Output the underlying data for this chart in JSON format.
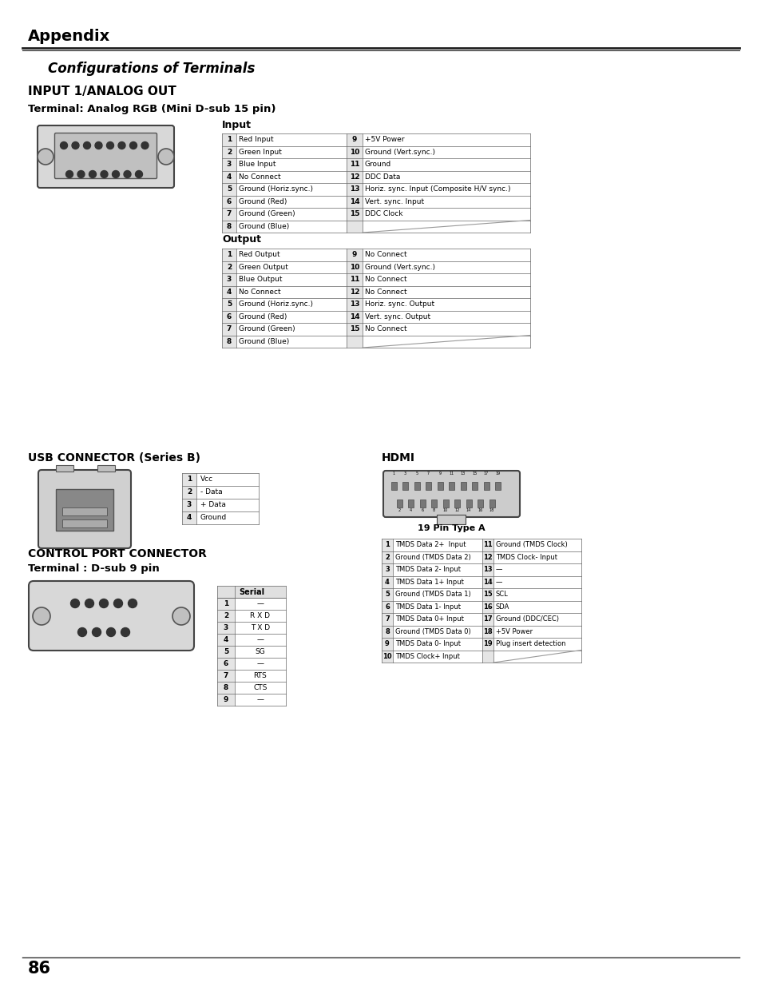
{
  "title_appendix": "Appendix",
  "section_title": "Configurations of Terminals",
  "subsection1": "INPUT 1/ANALOG OUT",
  "subsection1_sub": "Terminal: Analog RGB (Mini D-sub 15 pin)",
  "input_label": "Input",
  "output_label": "Output",
  "input_table_left": [
    [
      "1",
      "Red Input"
    ],
    [
      "2",
      "Green Input"
    ],
    [
      "3",
      "Blue Input"
    ],
    [
      "4",
      "No Connect"
    ],
    [
      "5",
      "Ground (Horiz.sync.)"
    ],
    [
      "6",
      "Ground (Red)"
    ],
    [
      "7",
      "Ground (Green)"
    ],
    [
      "8",
      "Ground (Blue)"
    ]
  ],
  "input_table_right": [
    [
      "9",
      "+5V Power"
    ],
    [
      "10",
      "Ground (Vert.sync.)"
    ],
    [
      "11",
      "Ground"
    ],
    [
      "12",
      "DDC Data"
    ],
    [
      "13",
      "Horiz. sync. Input (Composite H/V sync.)"
    ],
    [
      "14",
      "Vert. sync. Input"
    ],
    [
      "15",
      "DDC Clock"
    ],
    [
      "",
      ""
    ]
  ],
  "output_table_left": [
    [
      "1",
      "Red Output"
    ],
    [
      "2",
      "Green Output"
    ],
    [
      "3",
      "Blue Output"
    ],
    [
      "4",
      "No Connect"
    ],
    [
      "5",
      "Ground (Horiz.sync.)"
    ],
    [
      "6",
      "Ground (Red)"
    ],
    [
      "7",
      "Ground (Green)"
    ],
    [
      "8",
      "Ground (Blue)"
    ]
  ],
  "output_table_right": [
    [
      "9",
      "No Connect"
    ],
    [
      "10",
      "Ground (Vert.sync.)"
    ],
    [
      "11",
      "No Connect"
    ],
    [
      "12",
      "No Connect"
    ],
    [
      "13",
      "Horiz. sync. Output"
    ],
    [
      "14",
      "Vert. sync. Output"
    ],
    [
      "15",
      "No Connect"
    ],
    [
      "",
      ""
    ]
  ],
  "usb_title": "USB CONNECTOR (Series B)",
  "usb_table": [
    [
      "1",
      "Vcc"
    ],
    [
      "2",
      "- Data"
    ],
    [
      "3",
      "+ Data"
    ],
    [
      "4",
      "Ground"
    ]
  ],
  "hdmi_title": "HDMI",
  "hdmi_sub": "19 Pin Type A",
  "hdmi_table": [
    [
      "1",
      "TMDS Data 2+  Input",
      "11",
      "Ground (TMDS Clock)"
    ],
    [
      "2",
      "Ground (TMDS Data 2)",
      "12",
      "TMDS Clock- Input"
    ],
    [
      "3",
      "TMDS Data 2- Input",
      "13",
      "—"
    ],
    [
      "4",
      "TMDS Data 1+ Input",
      "14",
      "—"
    ],
    [
      "5",
      "Ground (TMDS Data 1)",
      "15",
      "SCL"
    ],
    [
      "6",
      "TMDS Data 1- Input",
      "16",
      "SDA"
    ],
    [
      "7",
      "TMDS Data 0+ Input",
      "17",
      "Ground (DDC/CEC)"
    ],
    [
      "8",
      "Ground (TMDS Data 0)",
      "18",
      "+5V Power"
    ],
    [
      "9",
      "TMDS Data 0- Input",
      "19",
      "Plug insert detection"
    ],
    [
      "10",
      "TMDS Clock+ Input",
      "",
      ""
    ]
  ],
  "control_title": "CONTROL PORT CONNECTOR",
  "control_sub": "Terminal : D-sub 9 pin",
  "serial_table": [
    [
      "1",
      ""
    ],
    [
      "2",
      "R X D"
    ],
    [
      "3",
      "T X D"
    ],
    [
      "4",
      ""
    ],
    [
      "5",
      "SG"
    ],
    [
      "6",
      ""
    ],
    [
      "7",
      "RTS"
    ],
    [
      "8",
      "CTS"
    ],
    [
      "9",
      ""
    ]
  ],
  "page_number": "86",
  "bg_color": "#ffffff",
  "text_color": "#000000"
}
